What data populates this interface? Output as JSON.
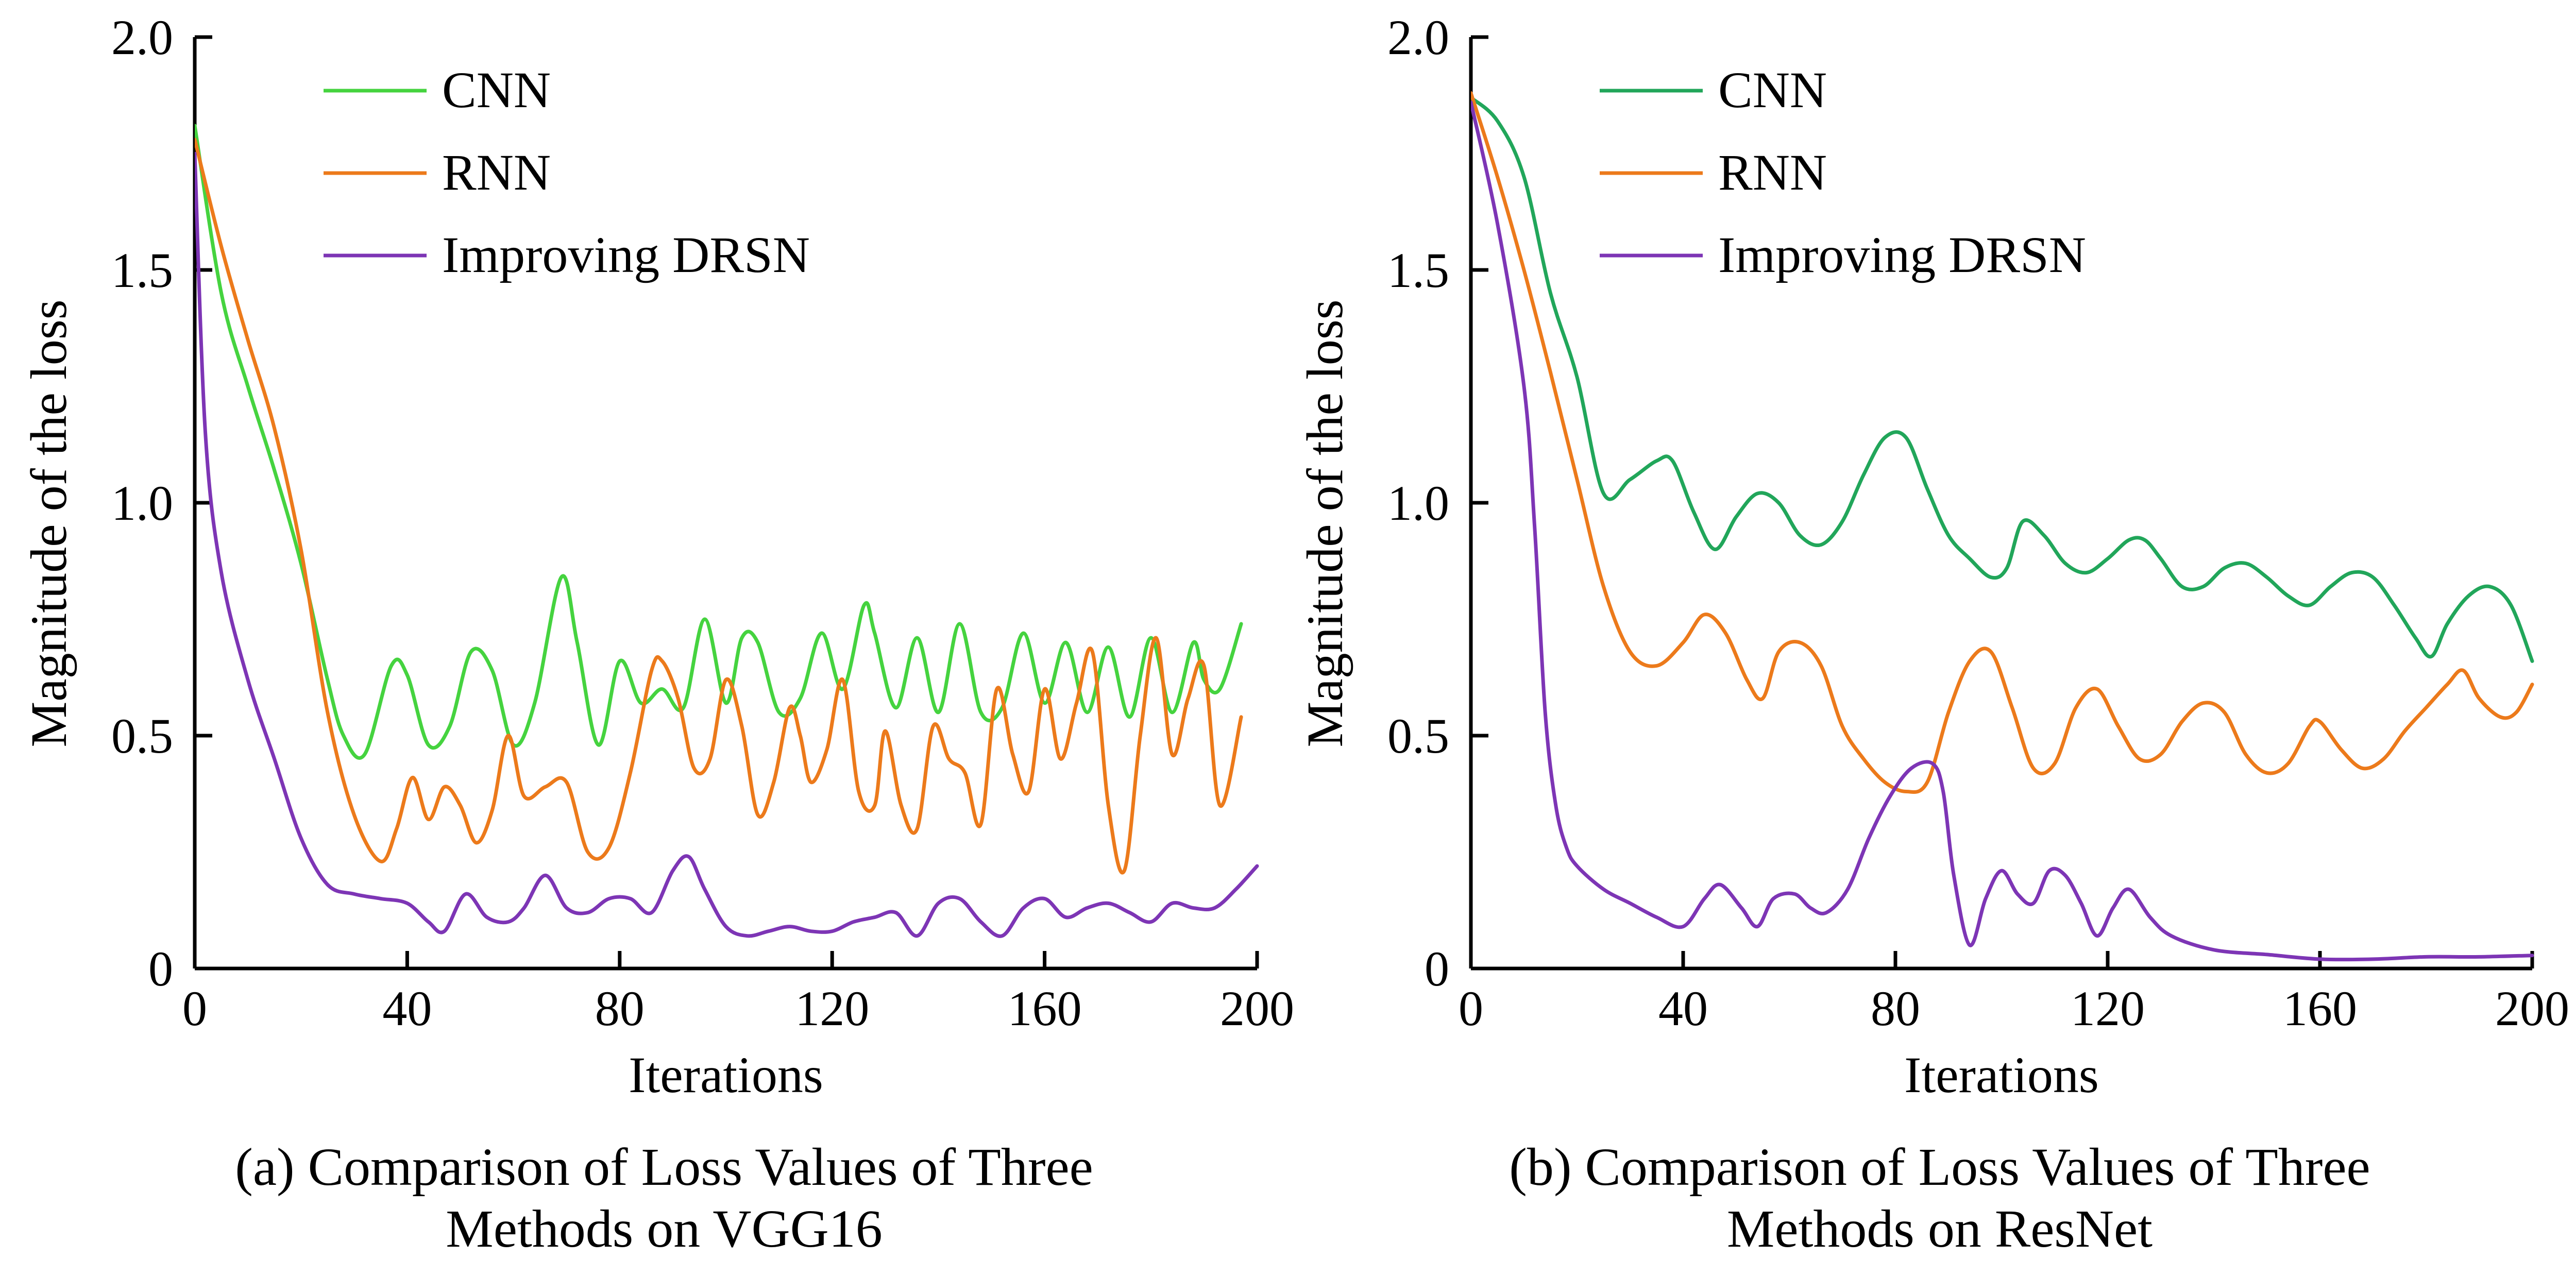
{
  "chart_data": [
    {
      "type": "line",
      "title": "(a) Comparison of Loss Values of Three Methods on VGG16",
      "title_lines": [
        "(a) Comparison of Loss Values of Three",
        "Methods on VGG16"
      ],
      "xlabel": "Iterations",
      "ylabel": "Magnitude of the loss",
      "xlim": [
        0,
        200
      ],
      "ylim": [
        0,
        2.0
      ],
      "xticks": [
        "0",
        "40",
        "80",
        "120",
        "160",
        "200"
      ],
      "yticks": [
        "0",
        "0.5",
        "1.0",
        "1.5",
        "2.0"
      ],
      "grid": false,
      "legend": "top-left",
      "series": [
        {
          "name": "CNN",
          "color": "#45d33f",
          "x": [
            0,
            5,
            10,
            15,
            20,
            25,
            28,
            32,
            37,
            40,
            44,
            48,
            52,
            56,
            60,
            64,
            69,
            72,
            76,
            80,
            84,
            88,
            92,
            96,
            100,
            103,
            106,
            110,
            114,
            118,
            122,
            126,
            128,
            132,
            136,
            140,
            144,
            148,
            152,
            156,
            160,
            164,
            168,
            172,
            176,
            180,
            184,
            188,
            190,
            193,
            197
          ],
          "y": [
            1.81,
            1.45,
            1.25,
            1.07,
            0.87,
            0.62,
            0.5,
            0.46,
            0.65,
            0.63,
            0.48,
            0.52,
            0.68,
            0.64,
            0.48,
            0.57,
            0.84,
            0.7,
            0.48,
            0.66,
            0.57,
            0.6,
            0.56,
            0.75,
            0.57,
            0.71,
            0.7,
            0.55,
            0.58,
            0.72,
            0.6,
            0.78,
            0.72,
            0.56,
            0.71,
            0.55,
            0.74,
            0.55,
            0.56,
            0.72,
            0.57,
            0.7,
            0.55,
            0.69,
            0.54,
            0.71,
            0.55,
            0.7,
            0.62,
            0.6,
            0.74
          ]
        },
        {
          "name": "RNN",
          "color": "#ec7a1b",
          "x": [
            0,
            5,
            10,
            15,
            20,
            25,
            30,
            35,
            38,
            41,
            44,
            47,
            50,
            53,
            56,
            59,
            62,
            66,
            70,
            74,
            78,
            82,
            86,
            88,
            91,
            94,
            97,
            100,
            103,
            106,
            109,
            112,
            114,
            116,
            119,
            122,
            125,
            128,
            130,
            133,
            136,
            139,
            142,
            145,
            148,
            151,
            154,
            157,
            160,
            163,
            166,
            169,
            172,
            175,
            178,
            181,
            184,
            187,
            190,
            193,
            197
          ],
          "y": [
            1.78,
            1.55,
            1.35,
            1.16,
            0.9,
            0.55,
            0.33,
            0.23,
            0.3,
            0.41,
            0.32,
            0.39,
            0.35,
            0.27,
            0.34,
            0.5,
            0.37,
            0.39,
            0.4,
            0.25,
            0.26,
            0.42,
            0.64,
            0.66,
            0.58,
            0.43,
            0.45,
            0.62,
            0.52,
            0.33,
            0.4,
            0.56,
            0.5,
            0.4,
            0.47,
            0.62,
            0.38,
            0.35,
            0.51,
            0.35,
            0.3,
            0.52,
            0.45,
            0.42,
            0.31,
            0.6,
            0.46,
            0.38,
            0.6,
            0.45,
            0.57,
            0.68,
            0.35,
            0.21,
            0.5,
            0.71,
            0.46,
            0.58,
            0.65,
            0.35,
            0.54
          ]
        },
        {
          "name": "Improving DRSN",
          "color": "#7d35b5",
          "x": [
            0,
            2,
            5,
            10,
            15,
            20,
            25,
            30,
            35,
            40,
            44,
            47,
            51,
            55,
            59,
            62,
            66,
            70,
            74,
            78,
            82,
            86,
            90,
            93,
            96,
            100,
            104,
            108,
            112,
            116,
            120,
            124,
            128,
            132,
            136,
            140,
            144,
            148,
            152,
            156,
            160,
            164,
            168,
            172,
            176,
            180,
            184,
            188,
            192,
            196,
            200
          ],
          "y": [
            1.75,
            1.15,
            0.85,
            0.62,
            0.45,
            0.28,
            0.18,
            0.16,
            0.15,
            0.14,
            0.1,
            0.08,
            0.16,
            0.11,
            0.1,
            0.13,
            0.2,
            0.13,
            0.12,
            0.15,
            0.15,
            0.12,
            0.21,
            0.24,
            0.17,
            0.09,
            0.07,
            0.08,
            0.09,
            0.08,
            0.08,
            0.1,
            0.11,
            0.12,
            0.07,
            0.14,
            0.15,
            0.1,
            0.07,
            0.13,
            0.15,
            0.11,
            0.13,
            0.14,
            0.12,
            0.1,
            0.14,
            0.13,
            0.13,
            0.17,
            0.22
          ]
        }
      ]
    },
    {
      "type": "line",
      "title": "(b) Comparison of Loss Values of Three Methods on ResNet",
      "title_lines": [
        "(b) Comparison of Loss Values of Three",
        "Methods on ResNet"
      ],
      "xlabel": "Iterations",
      "ylabel": "Magnitude of the loss",
      "xlim": [
        0,
        200
      ],
      "ylim": [
        0,
        2.0
      ],
      "xticks": [
        "0",
        "40",
        "80",
        "120",
        "160",
        "200"
      ],
      "yticks": [
        "0",
        "0.5",
        "1.0",
        "1.5",
        "2.0"
      ],
      "grid": false,
      "legend": "top-left",
      "series": [
        {
          "name": "CNN",
          "color": "#21a65a",
          "x": [
            0,
            5,
            10,
            15,
            20,
            25,
            30,
            35,
            38,
            42,
            46,
            50,
            54,
            58,
            62,
            66,
            70,
            74,
            78,
            82,
            86,
            90,
            94,
            98,
            101,
            104,
            108,
            112,
            116,
            120,
            124,
            127,
            130,
            134,
            138,
            142,
            146,
            150,
            154,
            158,
            162,
            166,
            170,
            174,
            178,
            181,
            184,
            188,
            192,
            196,
            200
          ],
          "y": [
            1.87,
            1.82,
            1.7,
            1.45,
            1.27,
            1.02,
            1.05,
            1.09,
            1.09,
            0.98,
            0.9,
            0.97,
            1.02,
            1.0,
            0.93,
            0.91,
            0.96,
            1.06,
            1.14,
            1.14,
            1.03,
            0.93,
            0.88,
            0.84,
            0.86,
            0.96,
            0.93,
            0.87,
            0.85,
            0.88,
            0.92,
            0.92,
            0.88,
            0.82,
            0.82,
            0.86,
            0.87,
            0.84,
            0.8,
            0.78,
            0.82,
            0.85,
            0.84,
            0.78,
            0.71,
            0.67,
            0.74,
            0.8,
            0.82,
            0.78,
            0.66
          ]
        },
        {
          "name": "RNN",
          "color": "#ec7a1b",
          "x": [
            0,
            5,
            10,
            15,
            20,
            25,
            30,
            35,
            40,
            44,
            48,
            52,
            55,
            58,
            62,
            66,
            70,
            74,
            78,
            82,
            86,
            90,
            94,
            98,
            102,
            106,
            110,
            114,
            118,
            122,
            126,
            130,
            134,
            138,
            142,
            146,
            150,
            154,
            158,
            160,
            164,
            168,
            172,
            176,
            180,
            184,
            187,
            190,
            194,
            197,
            200
          ],
          "y": [
            1.88,
            1.7,
            1.5,
            1.28,
            1.05,
            0.82,
            0.68,
            0.65,
            0.7,
            0.76,
            0.72,
            0.62,
            0.58,
            0.68,
            0.7,
            0.65,
            0.52,
            0.45,
            0.4,
            0.38,
            0.4,
            0.55,
            0.66,
            0.68,
            0.56,
            0.43,
            0.44,
            0.56,
            0.6,
            0.52,
            0.45,
            0.46,
            0.53,
            0.57,
            0.55,
            0.46,
            0.42,
            0.44,
            0.52,
            0.53,
            0.47,
            0.43,
            0.45,
            0.51,
            0.56,
            0.61,
            0.64,
            0.58,
            0.54,
            0.55,
            0.61
          ]
        },
        {
          "name": "Improving DRSN",
          "color": "#7d35b5",
          "x": [
            0,
            5,
            10,
            12,
            14,
            16,
            18,
            20,
            25,
            30,
            35,
            40,
            44,
            47,
            51,
            54,
            57,
            61,
            64,
            67,
            71,
            75,
            79,
            83,
            87,
            89,
            91,
            94,
            97,
            100,
            103,
            106,
            109,
            112,
            115,
            118,
            121,
            124,
            128,
            132,
            140,
            150,
            160,
            170,
            180,
            190,
            200
          ],
          "y": [
            1.86,
            1.6,
            1.25,
            0.95,
            0.55,
            0.35,
            0.26,
            0.22,
            0.17,
            0.14,
            0.11,
            0.09,
            0.15,
            0.18,
            0.13,
            0.09,
            0.15,
            0.16,
            0.13,
            0.12,
            0.17,
            0.28,
            0.37,
            0.43,
            0.44,
            0.38,
            0.2,
            0.05,
            0.15,
            0.21,
            0.16,
            0.14,
            0.21,
            0.2,
            0.14,
            0.07,
            0.13,
            0.17,
            0.11,
            0.07,
            0.04,
            0.03,
            0.02,
            0.02,
            0.025,
            0.025,
            0.028
          ]
        }
      ]
    }
  ]
}
